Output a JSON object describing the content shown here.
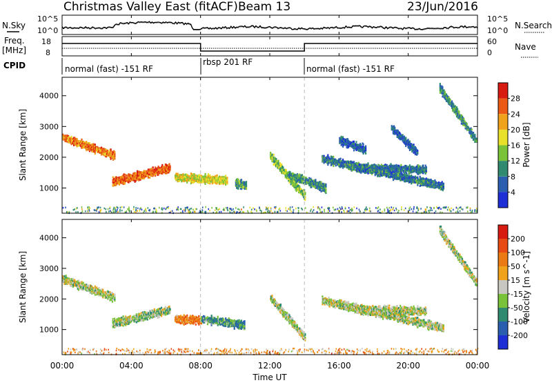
{
  "header": {
    "title": "Christmas Valley East (fitACF)",
    "beam": "Beam 13",
    "date": "23/Jun/2016"
  },
  "top_panels": {
    "nsky_label": "N.Sky",
    "nsearch_label": "N.Search",
    "noise_ticks": [
      "10^5",
      "10^0"
    ],
    "freq_label_1": "Freq.",
    "freq_label_2": "[MHz]",
    "freq_ticks": [
      "18",
      "8"
    ],
    "nave_label": "Nave",
    "nave_ticks": [
      "60",
      "0"
    ],
    "cpid_label": "CPID",
    "cpid_segments": [
      {
        "label": "normal (fast) -151 RF",
        "start_h": 0,
        "end_h": 8
      },
      {
        "label": "rbsp 201 RF",
        "start_h": 8,
        "end_h": 14
      },
      {
        "label": "normal (fast) -151 RF",
        "start_h": 14,
        "end_h": 24
      }
    ]
  },
  "chart_data": [
    {
      "type": "heatmap",
      "ylabel": "Slant Range [km]",
      "ylim": [
        180,
        4600
      ],
      "yticks": [
        1000,
        2000,
        3000,
        4000
      ],
      "colorbar": {
        "label": "Power [dB]",
        "ticks": [
          4,
          8,
          12,
          16,
          20,
          24,
          28
        ],
        "colors": [
          "#1f2fd6",
          "#2a5fb0",
          "#2f8a70",
          "#7ac23a",
          "#e8e02a",
          "#f0a21c",
          "#ea5a14",
          "#d81b10"
        ]
      },
      "echo_bands": [
        {
          "t0": 0.0,
          "r0": 2700,
          "t1": 3.0,
          "r1": 2100,
          "level": 0.75
        },
        {
          "t0": 2.9,
          "r0": 1250,
          "t1": 6.2,
          "r1": 1700,
          "level": 0.8
        },
        {
          "t0": 6.5,
          "r0": 1400,
          "t1": 9.5,
          "r1": 1300,
          "level": 0.55
        },
        {
          "t0": 10.0,
          "r0": 1200,
          "t1": 10.6,
          "r1": 1150,
          "level": 0.35
        },
        {
          "t0": 12.0,
          "r0": 2100,
          "t1": 14.0,
          "r1": 800,
          "level": 0.45
        },
        {
          "t0": 13.0,
          "r0": 1500,
          "t1": 15.2,
          "r1": 1050,
          "level": 0.3
        },
        {
          "t0": 15.0,
          "r0": 2000,
          "t1": 22.0,
          "r1": 1100,
          "level": 0.25
        },
        {
          "t0": 17.0,
          "r0": 1700,
          "t1": 21.0,
          "r1": 1650,
          "level": 0.25
        },
        {
          "t0": 16.0,
          "r0": 2600,
          "t1": 17.5,
          "r1": 2300,
          "level": 0.2
        },
        {
          "t0": 19.0,
          "r0": 3000,
          "t1": 20.5,
          "r1": 2200,
          "level": 0.2
        },
        {
          "t0": 21.8,
          "r0": 4300,
          "t1": 23.9,
          "r1": 2600,
          "level": 0.3
        }
      ]
    },
    {
      "type": "heatmap",
      "ylabel": "Slant Range [km]",
      "ylim": [
        180,
        4600
      ],
      "yticks": [
        1000,
        2000,
        3000,
        4000
      ],
      "colorbar": {
        "label": "Velocity [m s^-1]",
        "ticks": [
          200,
          100,
          50,
          15,
          -15,
          -50,
          -100,
          -200
        ],
        "colors": [
          "#1f2fd6",
          "#2a5fb0",
          "#2f8a70",
          "#7ac23a",
          "#c8c8c0",
          "#f0a21c",
          "#ea7a14",
          "#e84a14",
          "#d81b10"
        ]
      },
      "echo_bands": [
        {
          "t0": 0.0,
          "r0": 2700,
          "t1": 3.0,
          "r1": 2100,
          "level": 0.45
        },
        {
          "t0": 2.9,
          "r0": 1250,
          "t1": 6.2,
          "r1": 1700,
          "level": 0.42
        },
        {
          "t0": 6.5,
          "r0": 1400,
          "t1": 8.0,
          "r1": 1350,
          "level": 0.7
        },
        {
          "t0": 8.0,
          "r0": 1400,
          "t1": 10.5,
          "r1": 1200,
          "level": 0.3
        },
        {
          "t0": 12.0,
          "r0": 2100,
          "t1": 14.0,
          "r1": 800,
          "level": 0.45
        },
        {
          "t0": 15.0,
          "r0": 2000,
          "t1": 22.0,
          "r1": 1100,
          "level": 0.45
        },
        {
          "t0": 17.0,
          "r0": 1700,
          "t1": 21.0,
          "r1": 1650,
          "level": 0.45
        },
        {
          "t0": 21.8,
          "r0": 4300,
          "t1": 23.9,
          "r1": 2600,
          "level": 0.45
        }
      ]
    }
  ],
  "x_axis": {
    "label": "Time UT",
    "ticks": [
      "00:00",
      "04:00",
      "08:00",
      "12:00",
      "16:00",
      "20:00",
      "00:00"
    ]
  }
}
